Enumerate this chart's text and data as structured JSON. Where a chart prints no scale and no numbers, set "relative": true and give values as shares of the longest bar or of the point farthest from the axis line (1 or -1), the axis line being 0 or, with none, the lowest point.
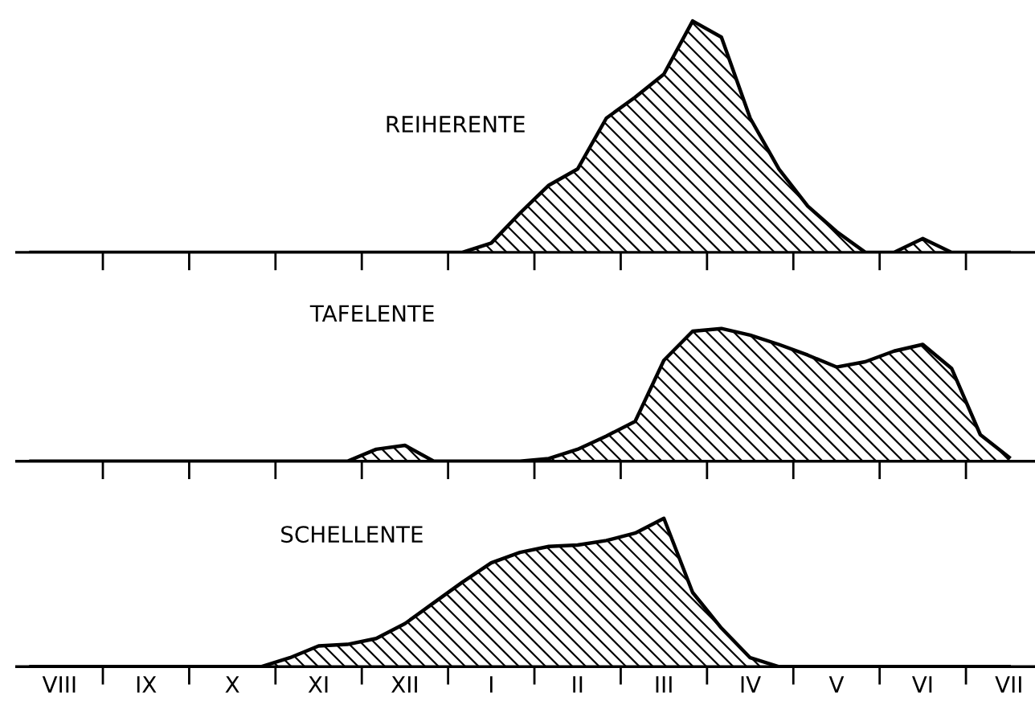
{
  "chart_data": [
    {
      "type": "area",
      "title": "REIHERENTE",
      "relative": true,
      "tick_labels": false,
      "categories": [
        null,
        null,
        null,
        null,
        null,
        null,
        null,
        null,
        null,
        null,
        null,
        null,
        null,
        null,
        null,
        null,
        null,
        null,
        null,
        null,
        null,
        null,
        null,
        null,
        null,
        null,
        null,
        null,
        null,
        null,
        null,
        null,
        null,
        null,
        null
      ],
      "series": [
        {
          "color": "#000000",
          "values": [
            0,
            0,
            0,
            0,
            0,
            0,
            0,
            0,
            0,
            0,
            0,
            0,
            0,
            0,
            0,
            0,
            0.04,
            0.17,
            0.29,
            0.36,
            0.58,
            0.67,
            0.77,
            1.0,
            0.93,
            0.58,
            0.36,
            0.2,
            0.09,
            0,
            0,
            0.06,
            0,
            0,
            0
          ]
        }
      ]
    },
    {
      "type": "area",
      "title": "TAFELENTE",
      "relative": true,
      "tick_labels": false,
      "categories": [
        null,
        null,
        null,
        null,
        null,
        null,
        null,
        null,
        null,
        null,
        null,
        null,
        null,
        null,
        null,
        null,
        null,
        null,
        null,
        null,
        null,
        null,
        null,
        null,
        null,
        null,
        null,
        null,
        null,
        null,
        null,
        null,
        null,
        null,
        null
      ],
      "series": [
        {
          "color": "#000000",
          "values": [
            0,
            0,
            0,
            0,
            0,
            0,
            0,
            0,
            0,
            0,
            0,
            0,
            0.09,
            0.12,
            0,
            0,
            0,
            0,
            0.02,
            0.09,
            0.19,
            0.3,
            0.76,
            0.98,
            1.0,
            0.95,
            0.88,
            0.8,
            0.71,
            0.75,
            0.83,
            0.88,
            0.7,
            0.2,
            0.03
          ]
        }
      ]
    },
    {
      "type": "area",
      "title": "SCHELLENTE",
      "relative": true,
      "tick_labels": "x",
      "categories": [
        null,
        "VIII",
        null,
        null,
        "IX",
        null,
        null,
        "X",
        null,
        null,
        "XI",
        null,
        null,
        "XII",
        null,
        null,
        "I",
        null,
        null,
        "II",
        null,
        null,
        "III",
        null,
        null,
        "IV",
        null,
        null,
        "V",
        null,
        null,
        "VI",
        null,
        null,
        "VII"
      ],
      "series": [
        {
          "color": "#000000",
          "values": [
            0,
            0,
            0,
            0,
            0,
            0,
            0,
            0,
            0,
            0.06,
            0.14,
            0.15,
            0.19,
            0.29,
            0.43,
            0.57,
            0.7,
            0.77,
            0.81,
            0.82,
            0.85,
            0.9,
            1.0,
            0.5,
            0.26,
            0.06,
            0,
            0,
            0,
            0,
            0,
            0,
            0,
            0,
            0
          ]
        }
      ]
    }
  ]
}
